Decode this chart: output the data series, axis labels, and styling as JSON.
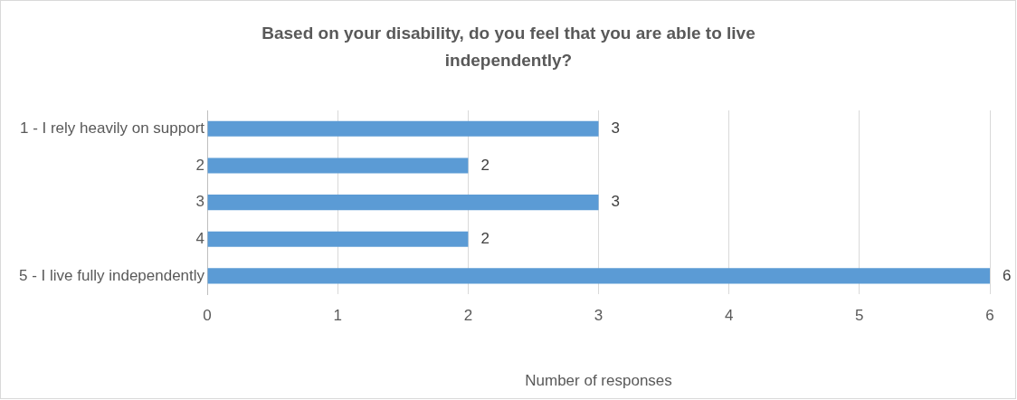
{
  "chart_data": {
    "type": "bar",
    "orientation": "horizontal",
    "title": "Based on your disability, do you feel that you are able to live independently?",
    "xlabel": "Number of responses",
    "categories": [
      "1 - I rely heavily on support",
      "2",
      "3",
      "4",
      "5 - I live fully independently"
    ],
    "values": [
      3,
      2,
      3,
      2,
      6
    ],
    "color": "#5b9bd5",
    "xlim": [
      0,
      6
    ],
    "xticks": [
      0,
      1,
      2,
      3,
      4,
      5,
      6
    ],
    "grid": "x",
    "data_labels": true,
    "legend": false
  }
}
